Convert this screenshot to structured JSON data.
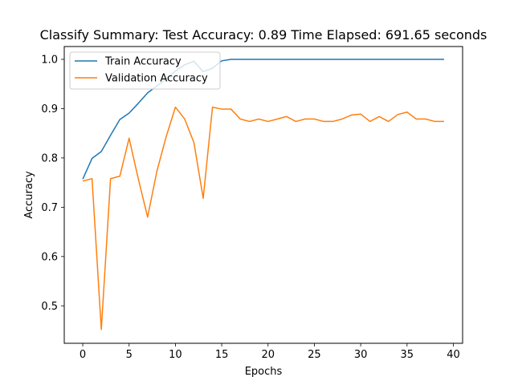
{
  "chart_data": {
    "type": "line",
    "title": "Classify Summary: Test Accuracy: 0.89 Time Elapsed: 691.65 seconds",
    "xlabel": "Epochs",
    "ylabel": "Accuracy",
    "xlim": [
      -2,
      41
    ],
    "ylim": [
      0.424,
      1.026
    ],
    "xticks": [
      0,
      5,
      10,
      15,
      20,
      25,
      30,
      35,
      40
    ],
    "xtick_labels": [
      "0",
      "5",
      "10",
      "15",
      "20",
      "25",
      "30",
      "35",
      "40"
    ],
    "yticks": [
      0.5,
      0.6,
      0.7,
      0.8,
      0.9,
      1.0
    ],
    "ytick_labels": [
      "0.5",
      "0.6",
      "0.7",
      "0.8",
      "0.9",
      "1.0"
    ],
    "grid": false,
    "legend_position": "top-left",
    "x": [
      0,
      1,
      2,
      3,
      4,
      5,
      6,
      7,
      8,
      9,
      10,
      11,
      12,
      13,
      14,
      15,
      16,
      17,
      18,
      19,
      20,
      21,
      22,
      23,
      24,
      25,
      26,
      27,
      28,
      29,
      30,
      31,
      32,
      33,
      34,
      35,
      36,
      37,
      38,
      39
    ],
    "series": [
      {
        "name": "Train Accuracy",
        "color": "#1f77b4",
        "values": [
          0.757,
          0.799,
          0.813,
          0.846,
          0.878,
          0.891,
          0.911,
          0.932,
          0.946,
          0.96,
          0.976,
          0.989,
          0.996,
          0.975,
          0.982,
          0.997,
          1.0,
          1.0,
          1.0,
          1.0,
          1.0,
          1.0,
          1.0,
          1.0,
          1.0,
          1.0,
          1.0,
          1.0,
          1.0,
          1.0,
          1.0,
          1.0,
          1.0,
          1.0,
          1.0,
          1.0,
          1.0,
          1.0,
          1.0,
          1.0
        ]
      },
      {
        "name": "Validation Accuracy",
        "color": "#ff7f0e",
        "values": [
          0.753,
          0.758,
          0.452,
          0.758,
          0.763,
          0.84,
          0.757,
          0.68,
          0.773,
          0.843,
          0.903,
          0.879,
          0.831,
          0.718,
          0.903,
          0.899,
          0.899,
          0.879,
          0.874,
          0.879,
          0.874,
          0.879,
          0.884,
          0.874,
          0.879,
          0.879,
          0.874,
          0.874,
          0.879,
          0.887,
          0.889,
          0.874,
          0.884,
          0.874,
          0.888,
          0.893,
          0.879,
          0.879,
          0.874,
          0.874
        ]
      }
    ]
  }
}
